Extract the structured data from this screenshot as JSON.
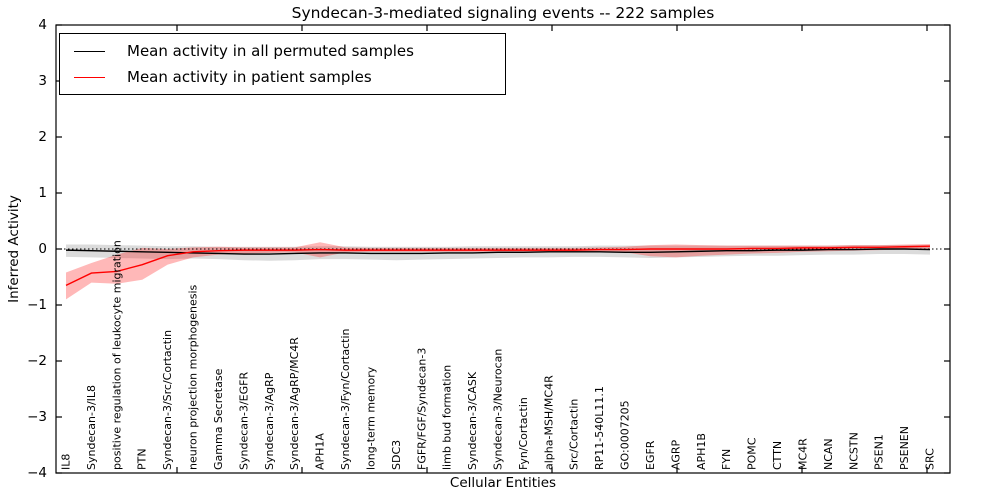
{
  "chart_data": {
    "type": "line",
    "title": "Syndecan-3-mediated signaling events -- 222 samples",
    "xlabel": "Cellular Entities",
    "ylabel": "Inferred Activity",
    "ylim": [
      -4,
      4
    ],
    "yticks": [
      4,
      3,
      2,
      1,
      0,
      -1,
      -2,
      -3,
      -4
    ],
    "grid": false,
    "legend_position": "upper-left",
    "reference_line_y": 0,
    "categories": [
      "IL8",
      "Syndecan-3/IL8",
      "positive regulation of leukocyte migration",
      "PTN",
      "Syndecan-3/Src/Cortactin",
      "neuron projection morphogenesis",
      "Gamma Secretase",
      "Syndecan-3/EGFR",
      "Syndecan-3/AgRP",
      "Syndecan-3/AgRP/MC4R",
      "APH1A",
      "Syndecan-3/Fyn/Cortactin",
      "long-term memory",
      "SDC3",
      "FGFR/FGF/Syndecan-3",
      "limb bud formation",
      "Syndecan-3/CASK",
      "Syndecan-3/Neurocan",
      "Fyn/Cortactin",
      "alpha-MSH/MC4R",
      "Src/Cortactin",
      "RP11-540L11.1",
      "GO:0007205",
      "EGFR",
      "AGRP",
      "APH1B",
      "FYN",
      "POMC",
      "CTTN",
      "MC4R",
      "NCAN",
      "NCSTN",
      "PSEN1",
      "PSENEN",
      "SRC"
    ],
    "series": [
      {
        "name": "Mean activity in all permuted samples",
        "color": "#000000",
        "values": [
          -0.02,
          -0.03,
          -0.04,
          -0.05,
          -0.06,
          -0.07,
          -0.08,
          -0.09,
          -0.09,
          -0.08,
          -0.07,
          -0.07,
          -0.08,
          -0.08,
          -0.08,
          -0.07,
          -0.07,
          -0.06,
          -0.06,
          -0.05,
          -0.05,
          -0.05,
          -0.06,
          -0.06,
          -0.05,
          -0.04,
          -0.03,
          -0.03,
          -0.02,
          -0.02,
          -0.01,
          -0.01,
          0,
          0,
          -0.01
        ],
        "band_low": [
          -0.14,
          -0.15,
          -0.16,
          -0.17,
          -0.18,
          -0.17,
          -0.18,
          -0.2,
          -0.21,
          -0.2,
          -0.18,
          -0.18,
          -0.19,
          -0.2,
          -0.19,
          -0.18,
          -0.17,
          -0.16,
          -0.15,
          -0.15,
          -0.14,
          -0.14,
          -0.15,
          -0.16,
          -0.15,
          -0.14,
          -0.13,
          -0.12,
          -0.12,
          -0.11,
          -0.1,
          -0.1,
          -0.09,
          -0.09,
          -0.1
        ],
        "band_high": [
          0.08,
          0.08,
          0.07,
          0.06,
          0.05,
          0.05,
          0.04,
          0.04,
          0.04,
          0.04,
          0.05,
          0.05,
          0.04,
          0.04,
          0.04,
          0.04,
          0.05,
          0.05,
          0.05,
          0.05,
          0.05,
          0.06,
          0.06,
          0.06,
          0.06,
          0.06,
          0.06,
          0.06,
          0.06,
          0.06,
          0.06,
          0.07,
          0.07,
          0.07,
          0.07
        ],
        "band_color": "#999999",
        "band_opacity": 0.35
      },
      {
        "name": "Mean activity in patient samples",
        "color": "#ff0000",
        "values": [
          -0.65,
          -0.43,
          -0.4,
          -0.28,
          -0.12,
          -0.05,
          -0.03,
          -0.02,
          -0.02,
          -0.02,
          -0.01,
          -0.02,
          -0.02,
          -0.02,
          -0.02,
          -0.02,
          -0.02,
          -0.02,
          -0.02,
          -0.02,
          -0.02,
          -0.01,
          -0.01,
          0,
          0,
          0,
          0,
          0.01,
          0.01,
          0.02,
          0.02,
          0.03,
          0.03,
          0.04,
          0.05
        ],
        "band_low": [
          -0.9,
          -0.6,
          -0.62,
          -0.55,
          -0.28,
          -0.15,
          -0.1,
          -0.08,
          -0.07,
          -0.06,
          -0.15,
          -0.06,
          -0.05,
          -0.05,
          -0.05,
          -0.05,
          -0.05,
          -0.05,
          -0.05,
          -0.05,
          -0.05,
          -0.05,
          -0.06,
          -0.13,
          -0.15,
          -0.12,
          -0.1,
          -0.08,
          -0.07,
          -0.05,
          -0.04,
          -0.03,
          -0.02,
          -0.01,
          0
        ],
        "band_high": [
          -0.42,
          -0.25,
          -0.1,
          0.02,
          0,
          0.03,
          0.04,
          0.03,
          0.03,
          0.03,
          0.12,
          0.03,
          0.02,
          0.02,
          0.02,
          0.02,
          0.02,
          0.02,
          0.02,
          0.02,
          0.02,
          0.03,
          0.04,
          0.07,
          0.08,
          0.07,
          0.06,
          0.06,
          0.06,
          0.06,
          0.06,
          0.07,
          0.07,
          0.08,
          0.09
        ],
        "band_color": "#ff0000",
        "band_opacity": 0.28
      }
    ]
  }
}
